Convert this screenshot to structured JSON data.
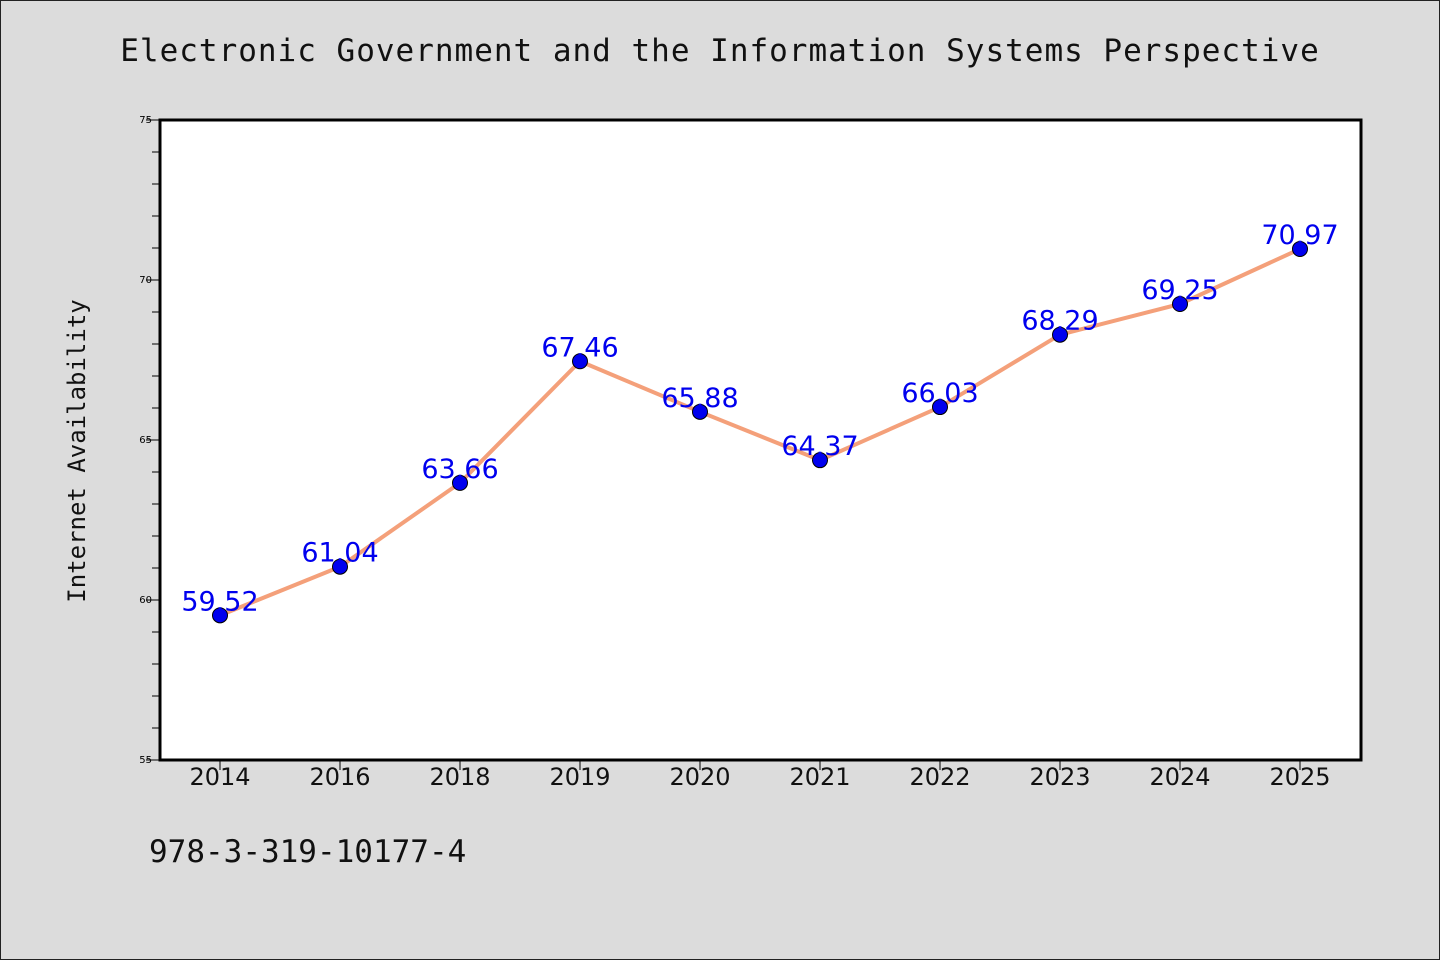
{
  "chart_data": {
    "type": "line",
    "title": "Electronic Government and the Information Systems Perspective",
    "xlabel": "",
    "ylabel": "Internet Availability",
    "categories": [
      "2014",
      "2016",
      "2018",
      "2019",
      "2020",
      "2021",
      "2022",
      "2023",
      "2024",
      "2025"
    ],
    "series": [
      {
        "values": [
          59.52,
          61.04,
          63.66,
          67.46,
          65.88,
          64.37,
          66.03,
          68.29,
          69.25,
          70.97
        ],
        "labels": [
          "59.52",
          "61.04",
          "63.66",
          "67.46",
          "65.88",
          "64.37",
          "66.03",
          "68.29",
          "69.25",
          "70.97"
        ]
      }
    ],
    "ylim": [
      55,
      75
    ],
    "yticks": [
      55,
      60,
      65,
      70,
      75
    ],
    "ytick_labels": [
      "55",
      "60",
      "65",
      "70",
      "75"
    ],
    "grid": false,
    "legend": "none",
    "colors": {
      "line": "#f4a07a",
      "marker": "#0000ee",
      "data_label": "#0000ee",
      "background": "#dcdcdc",
      "plot_area": "#ffffff"
    },
    "annotation": "978-3-319-10177-4"
  }
}
